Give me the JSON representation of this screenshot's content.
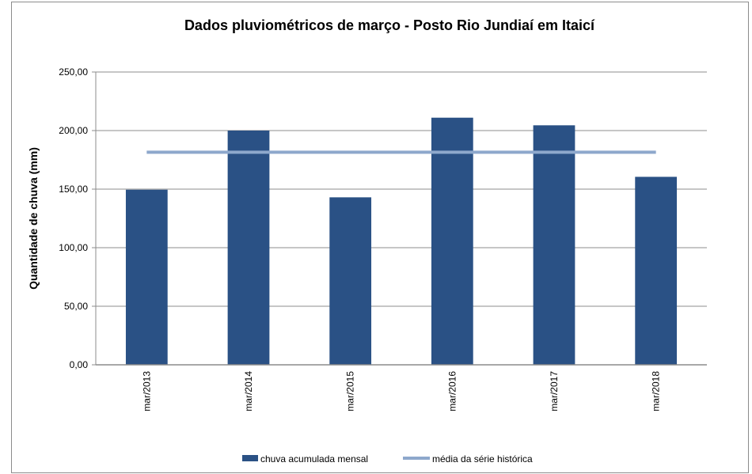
{
  "chart_data": {
    "type": "bar",
    "title": "Dados pluviométricos de março - Posto Rio Jundiaí em Itaicí",
    "xlabel": "",
    "ylabel": "Quantidade de chuva (mm)",
    "ylim": [
      0,
      250
    ],
    "y_ticks": [
      "0,00",
      "50,00",
      "100,00",
      "150,00",
      "200,00",
      "250,00"
    ],
    "y_tick_values": [
      0,
      50,
      100,
      150,
      200,
      250
    ],
    "grid": true,
    "legend_position": "bottom",
    "categories": [
      "mar/2013",
      "mar/2014",
      "mar/2015",
      "mar/2016",
      "mar/2017",
      "mar/2018"
    ],
    "series": [
      {
        "name": "chuva acumulada mensal",
        "type": "bar",
        "color": "#2a5185",
        "values": [
          149.5,
          200.0,
          143.0,
          211.0,
          204.5,
          160.5
        ]
      },
      {
        "name": "média da série histórica",
        "type": "line",
        "color": "#8ea8cc",
        "values": [
          181.5,
          181.5,
          181.5,
          181.5,
          181.5,
          181.5
        ]
      }
    ]
  }
}
